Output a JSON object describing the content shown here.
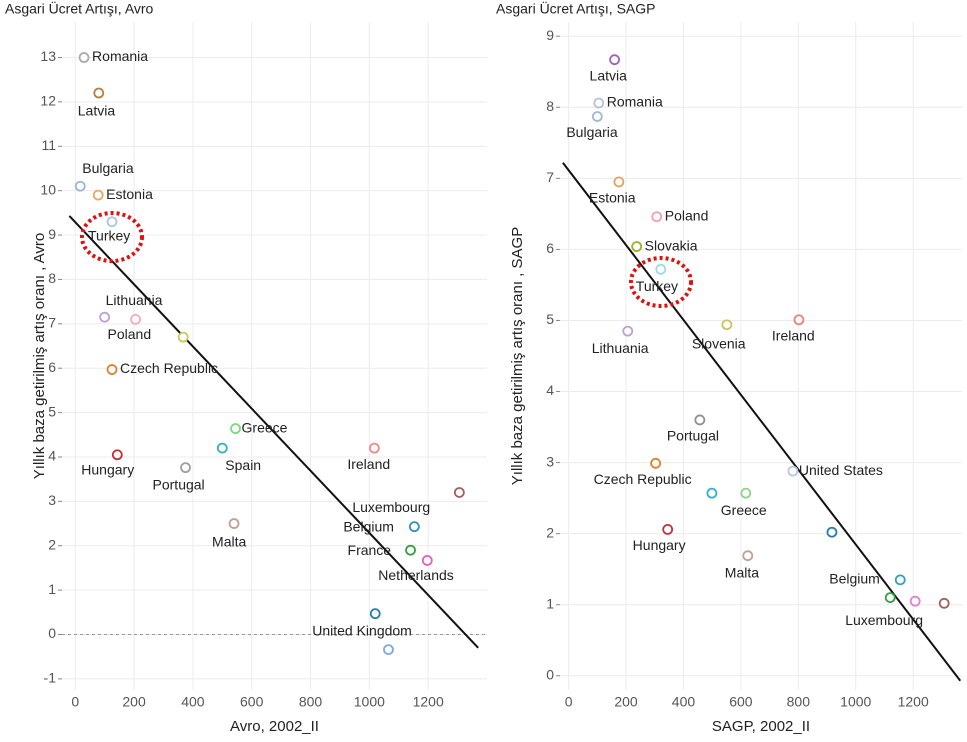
{
  "chart_data": [
    {
      "type": "scatter",
      "title": "Asgari Ücret Artışı, Avro",
      "x_label": "Avro, 2002_II",
      "y_label": "Yıllık baza getirilmiş artış oranı , Avro",
      "xlim": [
        -45,
        1400
      ],
      "ylim": [
        -1.25,
        13.8
      ],
      "xticks": [
        0,
        200,
        400,
        600,
        800,
        1000,
        1200
      ],
      "yticks": [
        -1,
        0,
        1,
        2,
        3,
        4,
        5,
        6,
        7,
        8,
        9,
        10,
        11,
        12,
        13
      ],
      "grid": true,
      "hline": 0,
      "labels": [
        "Romania",
        "Latvia",
        "Bulgaria",
        "Estonia",
        "Turkey",
        "Lithuania",
        "Poland",
        null,
        "Czech Republic",
        "Greece",
        "Spain",
        "Hungary",
        "Portugal",
        "Ireland",
        "Luxembourg",
        "Malta",
        "Belgium",
        "France",
        "Netherlands",
        "United Kingdom",
        null
      ],
      "x": [
        30,
        80,
        17,
        78,
        125,
        100,
        205,
        367,
        125,
        545,
        500,
        143,
        375,
        1017,
        1306,
        540,
        1153,
        1140,
        1197,
        1020,
        1065
      ],
      "values": [
        13.0,
        12.2,
        10.1,
        9.9,
        9.3,
        7.15,
        7.1,
        6.7,
        5.97,
        4.64,
        4.2,
        4.05,
        3.76,
        4.2,
        3.2,
        2.5,
        2.43,
        1.9,
        1.67,
        0.47,
        -0.34
      ],
      "colors": [
        "#b0a8a8",
        "#b08040",
        "#9ab4d8",
        "#e8a860",
        "#a8c8e0",
        "#c0a0d8",
        "#f0b0b8",
        "#c8c860",
        "#e08030",
        "#80d880",
        "#30b0c0",
        "#c03030",
        "#a0a0a0",
        "#f08888",
        "#a06060",
        "#c0a090",
        "#3090c0",
        "#30a040",
        "#e060c0",
        "#2080b0",
        "#80a8e0"
      ],
      "trendline": {
        "x": [
          -20,
          1370
        ],
        "values": [
          9.43,
          -0.3
        ]
      }
    },
    {
      "type": "scatter",
      "title": "Asgari Ücret Artışı, SAGP",
      "x_label": "SAGP, 2002_II",
      "y_label": "Yıllık baza getirilmiş artış oranı , SAGP",
      "xlim": [
        -30,
        1370
      ],
      "ylim": [
        -0.2,
        9.2
      ],
      "xticks": [
        0,
        200,
        400,
        600,
        800,
        1000,
        1200
      ],
      "yticks": [
        0,
        1,
        2,
        3,
        4,
        5,
        6,
        7,
        8,
        9
      ],
      "grid": true,
      "labels": [
        "Latvia",
        "Romania",
        "Bulgaria",
        "Estonia",
        "Poland",
        "Slovakia",
        "Turkey",
        "Lithuania",
        "Slovenia",
        "Ireland",
        "Portugal",
        "Czech Republic",
        "United States",
        null,
        "Greece",
        "Hungary",
        null,
        "Malta",
        "Belgium",
        null,
        null,
        "Luxembourg"
      ],
      "x": [
        160,
        105,
        100,
        175,
        307,
        237,
        321,
        206,
        551,
        802,
        457,
        303,
        781,
        499,
        617,
        345,
        917,
        624,
        1155,
        1120,
        1207,
        1308
      ],
      "values": [
        8.67,
        8.06,
        7.87,
        6.95,
        6.46,
        6.04,
        5.72,
        4.85,
        4.94,
        5.01,
        3.6,
        2.99,
        2.88,
        2.57,
        2.57,
        2.06,
        2.02,
        1.69,
        1.35,
        1.1,
        1.05,
        1.02
      ],
      "colors": [
        "#a060c0",
        "#b8c0d8",
        "#a0b8d8",
        "#e8a060",
        "#f0a0b0",
        "#a0b020",
        "#a0d8e8",
        "#c0a0d0",
        "#d0c060",
        "#f08080",
        "#909090",
        "#e08030",
        "#b8c8e0",
        "#30b0c0",
        "#90d090",
        "#c03040",
        "#2080b0",
        "#c0a090",
        "#30a0c0",
        "#30a040",
        "#e080d0",
        "#a06060"
      ],
      "trendline": {
        "x": [
          -20,
          1364
        ],
        "values": [
          7.22,
          -0.07
        ]
      }
    }
  ]
}
